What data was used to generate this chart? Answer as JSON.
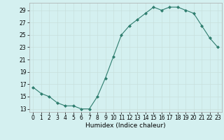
{
  "x": [
    0,
    1,
    2,
    3,
    4,
    5,
    6,
    7,
    8,
    9,
    10,
    11,
    12,
    13,
    14,
    15,
    16,
    17,
    18,
    19,
    20,
    21,
    22,
    23
  ],
  "y": [
    16.5,
    15.5,
    15.0,
    14.0,
    13.5,
    13.5,
    13.0,
    13.0,
    15.0,
    18.0,
    21.5,
    25.0,
    26.5,
    27.5,
    28.5,
    29.5,
    29.0,
    29.5,
    29.5,
    29.0,
    28.5,
    26.5,
    24.5,
    23.0
  ],
  "line_color": "#2e7d6e",
  "marker": "D",
  "marker_size": 2,
  "bg_color": "#d4f0f0",
  "grid_color": "#c8e0dc",
  "xlabel": "Humidex (Indice chaleur)",
  "xlim": [
    -0.5,
    23.5
  ],
  "ylim": [
    12.5,
    30.2
  ],
  "yticks": [
    13,
    15,
    17,
    19,
    21,
    23,
    25,
    27,
    29
  ],
  "xtick_labels": [
    "0",
    "1",
    "2",
    "3",
    "4",
    "5",
    "6",
    "7",
    "8",
    "9",
    "10",
    "11",
    "12",
    "13",
    "14",
    "15",
    "16",
    "17",
    "18",
    "19",
    "20",
    "21",
    "22",
    "23"
  ],
  "ylabel_fontsize": 5.5,
  "xlabel_fontsize": 6.5,
  "tick_fontsize": 5.5
}
